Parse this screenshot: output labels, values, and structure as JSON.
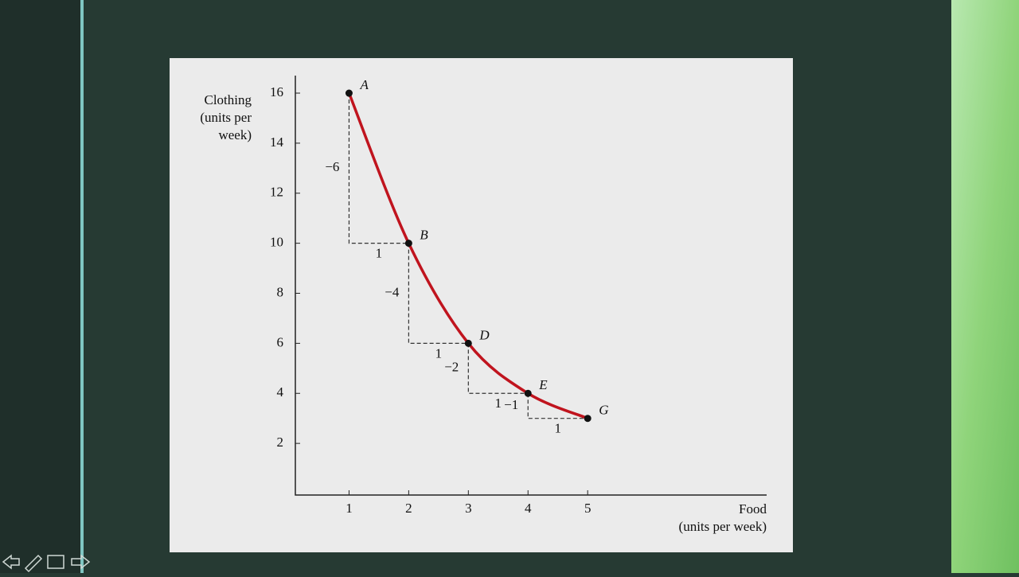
{
  "chart_data": {
    "type": "line",
    "x": [
      1,
      2,
      3,
      4,
      5
    ],
    "values": [
      16,
      10,
      6,
      4,
      3
    ],
    "point_labels": [
      "A",
      "B",
      "D",
      "E",
      "G"
    ],
    "color": "#c0141e",
    "xlim": [
      0.1,
      8
    ],
    "xticks": [
      1,
      2,
      3,
      4,
      5
    ],
    "ylim": [
      0,
      16.7
    ],
    "yticks": [
      2,
      4,
      6,
      8,
      10,
      12,
      14,
      16
    ],
    "y_label": [
      "Clothing",
      "(units per",
      "week)"
    ],
    "x_label": [
      "Food",
      "(units per week)"
    ],
    "step_labels": [
      {
        "drop": "−6",
        "run": "1"
      },
      {
        "drop": "−4",
        "run": "1"
      },
      {
        "drop": "−2",
        "run": "1"
      },
      {
        "drop": "−1",
        "run": "1"
      }
    ]
  }
}
